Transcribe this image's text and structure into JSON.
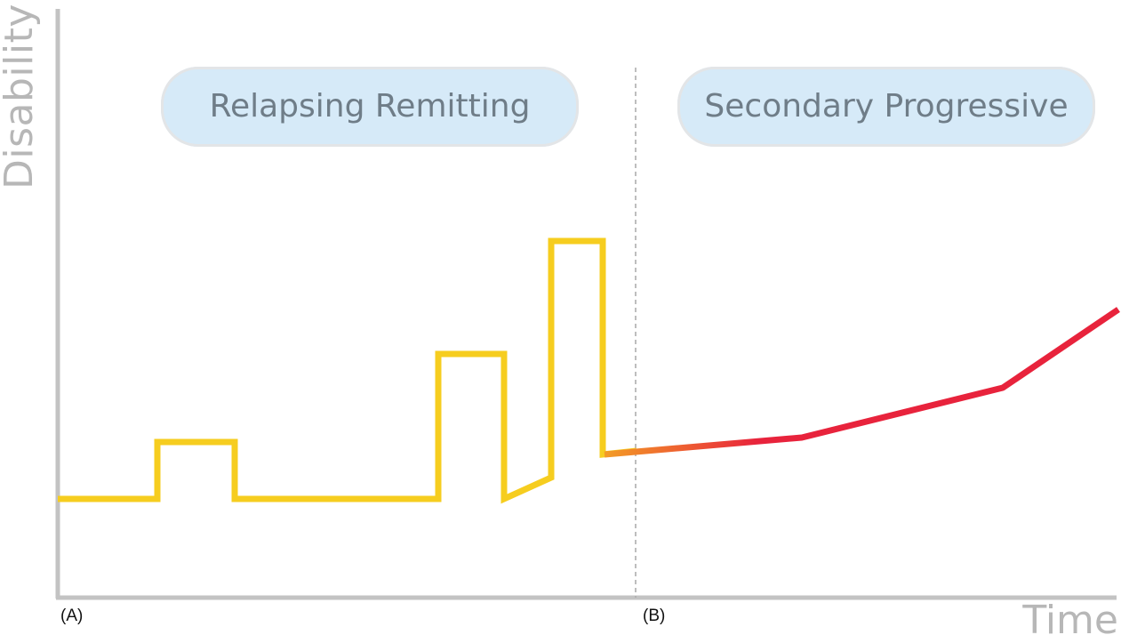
{
  "axes": {
    "y_title": "Disability",
    "x_title": "Time"
  },
  "markers": {
    "start_label": "(A)",
    "transition_label": "(B)"
  },
  "phases": [
    {
      "label": "Relapsing Remitting"
    },
    {
      "label": "Secondary Progressive"
    }
  ],
  "colors": {
    "axis": "#c3c3c3",
    "relapsing_line": "#f6cd1f",
    "progressive_start": "#f39c26",
    "progressive_end": "#e8233c",
    "phase_fill": "#d6eaf8",
    "phase_border": "#e3e5e7",
    "phase_text": "#6f7d88",
    "divider": "#a9a9a9"
  }
}
